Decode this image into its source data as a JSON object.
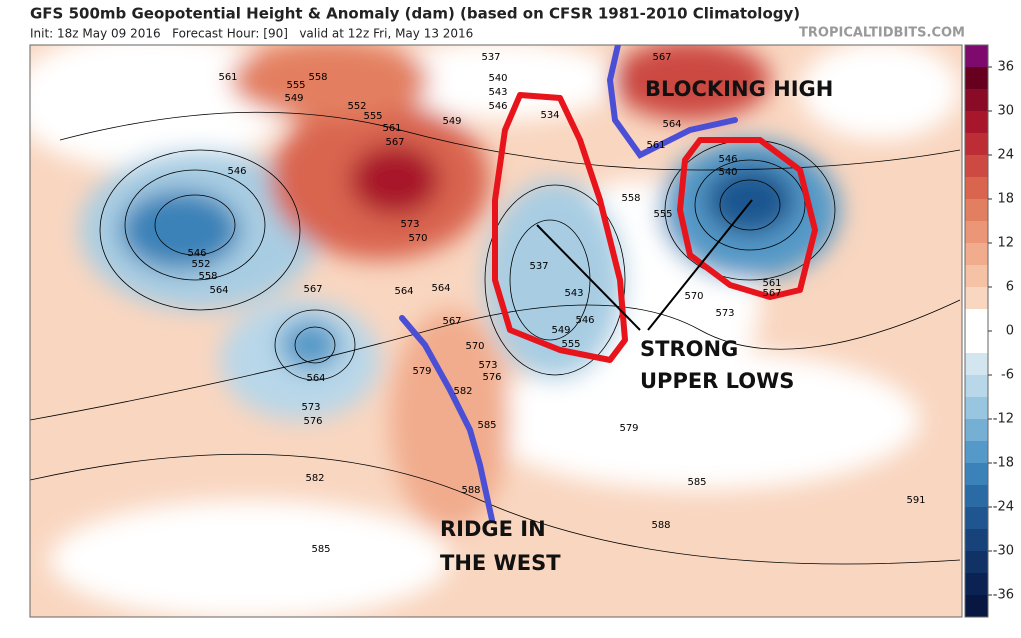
{
  "header": {
    "title": "GFS 500mb Geopotential Height & Anomaly (dam) (based on CFSR 1981-2010 Climatology)",
    "subtitle": "Init: 18z May 09 2016   Forecast Hour: [90]   valid at 12z Fri, May 13 2016",
    "source": "TROPICALTIDBITS.COM"
  },
  "annotations": {
    "blocking_high": "BLOCKING HIGH",
    "upper_lows": [
      "STRONG",
      "UPPER LOWS"
    ],
    "ridge": [
      "RIDGE IN",
      "THE WEST"
    ]
  },
  "colorbar": {
    "range": [
      -39,
      39
    ],
    "ticks": [
      36,
      30,
      24,
      18,
      12,
      6,
      0,
      -6,
      -12,
      -18,
      -24,
      -30,
      -36
    ],
    "colors": [
      "#7f0a6e",
      "#67001f",
      "#8a0b25",
      "#a8162b",
      "#bd2d35",
      "#cc4a42",
      "#d9654f",
      "#e37f61",
      "#eb9676",
      "#f1ac8d",
      "#f6c2a6",
      "#f9d6c0",
      "#ffffff",
      "#ffffff",
      "#d3e6f0",
      "#b8d7e9",
      "#98c5e0",
      "#75afd4",
      "#5499c7",
      "#3a82b8",
      "#2a6ba5",
      "#1f5690",
      "#17437a",
      "#113265",
      "#0b2352",
      "#081741"
    ]
  },
  "contour_labels": [
    "561",
    "558",
    "555",
    "549",
    "552",
    "555",
    "561",
    "567",
    "549",
    "537",
    "540",
    "543",
    "546",
    "534",
    "567",
    "564",
    "561",
    "546",
    "540",
    "546",
    "546",
    "552",
    "558",
    "564",
    "567",
    "573",
    "570",
    "564",
    "564",
    "567",
    "570",
    "573",
    "576",
    "579",
    "582",
    "585",
    "588",
    "564",
    "573",
    "576",
    "582",
    "585",
    "537",
    "543",
    "546",
    "549",
    "555",
    "558",
    "555",
    "570",
    "573",
    "579",
    "585",
    "588",
    "591",
    "561",
    "567"
  ]
}
